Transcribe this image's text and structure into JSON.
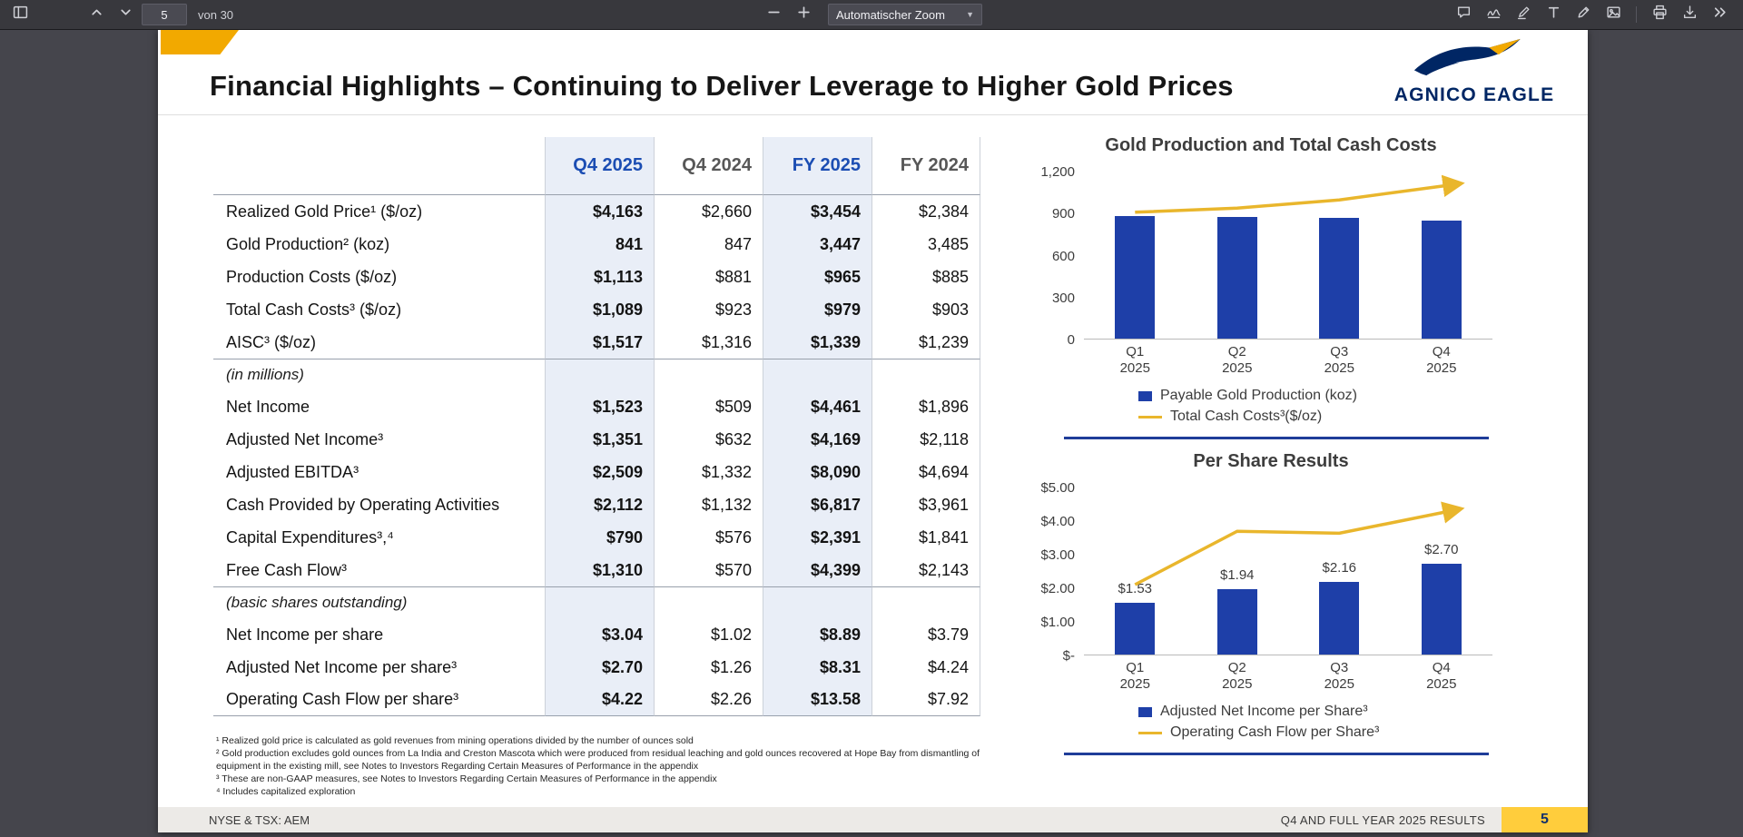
{
  "toolbar": {
    "page_input": "5",
    "pages_label": "von 30",
    "zoom_label": "Automatischer Zoom",
    "left_icons": [
      "sidebar-toggle-icon",
      "page-up-icon",
      "page-down-icon"
    ],
    "center_icons": [
      "zoom-out-icon",
      "zoom-in-icon",
      "zoom-select-chevron-icon"
    ],
    "right_icons": [
      "comment-icon",
      "signature-icon",
      "highlighter-icon",
      "text-tool-icon",
      "draw-icon",
      "image-icon",
      "print-icon",
      "save-icon",
      "more-tools-icon"
    ]
  },
  "slide": {
    "title": "Financial Highlights – Continuing to Deliver Leverage to Higher Gold Prices",
    "logo": "AGNICO EAGLE",
    "table": {
      "columns": [
        "Q4 2025",
        "Q4 2024",
        "FY 2025",
        "FY 2024"
      ],
      "rows": [
        {
          "type": "data",
          "label": "Realized Gold Price¹ ($/oz)",
          "values": [
            "$4,163",
            "$2,660",
            "$3,454",
            "$2,384"
          ]
        },
        {
          "type": "data",
          "label": "Gold Production² (koz)",
          "values": [
            "841",
            "847",
            "3,447",
            "3,485"
          ]
        },
        {
          "type": "data",
          "label": "Production Costs ($/oz)",
          "values": [
            "$1,113",
            "$881",
            "$965",
            "$885"
          ]
        },
        {
          "type": "data",
          "label": "Total Cash Costs³ ($/oz)",
          "values": [
            "$1,089",
            "$923",
            "$979",
            "$903"
          ]
        },
        {
          "type": "data",
          "label": "AISC³ ($/oz)",
          "values": [
            "$1,517",
            "$1,316",
            "$1,339",
            "$1,239"
          ]
        },
        {
          "type": "section",
          "label": "(in millions)"
        },
        {
          "type": "data",
          "label": "Net Income",
          "values": [
            "$1,523",
            "$509",
            "$4,461",
            "$1,896"
          ]
        },
        {
          "type": "data",
          "label": "Adjusted Net Income³",
          "values": [
            "$1,351",
            "$632",
            "$4,169",
            "$2,118"
          ]
        },
        {
          "type": "data",
          "label": "Adjusted EBITDA³",
          "values": [
            "$2,509",
            "$1,332",
            "$8,090",
            "$4,694"
          ]
        },
        {
          "type": "data",
          "label": "Cash Provided by Operating Activities",
          "values": [
            "$2,112",
            "$1,132",
            "$6,817",
            "$3,961"
          ]
        },
        {
          "type": "data",
          "label": "Capital Expenditures³,⁴",
          "values": [
            "$790",
            "$576",
            "$2,391",
            "$1,841"
          ]
        },
        {
          "type": "data",
          "label": "Free Cash Flow³",
          "values": [
            "$1,310",
            "$570",
            "$4,399",
            "$2,143"
          ]
        },
        {
          "type": "section",
          "label": "(basic shares outstanding)"
        },
        {
          "type": "data",
          "label": "Net Income per share",
          "values": [
            "$3.04",
            "$1.02",
            "$8.89",
            "$3.79"
          ]
        },
        {
          "type": "data",
          "label": "Adjusted Net Income per share³",
          "values": [
            "$2.70",
            "$1.26",
            "$8.31",
            "$4.24"
          ]
        },
        {
          "type": "data",
          "label": "Operating Cash Flow per share³",
          "values": [
            "$4.22",
            "$2.26",
            "$13.58",
            "$7.92"
          ]
        }
      ]
    },
    "footnotes": [
      "¹ Realized gold price is calculated as gold revenues from mining operations divided by the number of ounces sold",
      "² Gold production excludes gold ounces from La India and Creston Mascota which were produced from residual leaching and gold ounces recovered at Hope Bay from dismantling of equipment in the existing mill, see Notes to Investors Regarding Certain Measures of Performance in the appendix",
      "³ These are non-GAAP measures, see Notes to Investors Regarding Certain Measures of Performance in the appendix",
      "⁴ Includes capitalized exploration"
    ],
    "footer": {
      "ticker": "NYSE & TSX: AEM",
      "results": "Q4 AND FULL YEAR 2025 RESULTS",
      "page": "5"
    }
  },
  "colors": {
    "brand_navy": "#002664",
    "bar_blue": "#1e3fa8",
    "header_blue": "#1b4db3",
    "gold_accent": "#F2A900",
    "gold_line": "#E9B62C",
    "footer_gold": "#FFCD3C",
    "column_highlight": "#e9eef7",
    "legend_rule": "#1f3d99"
  },
  "chart_data": [
    {
      "type": "bar+line",
      "title": "Gold Production and Total Cash Costs",
      "categories": [
        "Q1 2025",
        "Q2 2025",
        "Q3 2025",
        "Q4 2025"
      ],
      "ymax": 1200,
      "ytick_labels": [
        "1,200",
        "900",
        "600",
        "300",
        "0"
      ],
      "grid": false,
      "legend_position": "bottom",
      "series": [
        {
          "name": "Payable Gold Production (koz)",
          "type": "bar",
          "color": "#1e3fa8",
          "values": [
            874,
            869,
            863,
            841
          ]
        },
        {
          "name": "Total Cash Costs³($/oz)",
          "type": "line",
          "color": "#E9B62C",
          "values": [
            903,
            933,
            991,
            1089
          ]
        }
      ]
    },
    {
      "type": "bar+line",
      "title": "Per Share Results",
      "categories": [
        "Q1 2025",
        "Q2 2025",
        "Q3 2025",
        "Q4 2025"
      ],
      "ymax": 5,
      "ytick_labels": [
        "$5.00",
        "$4.00",
        "$3.00",
        "$2.00",
        "$1.00",
        "$-"
      ],
      "grid": false,
      "legend_position": "bottom",
      "series": [
        {
          "name": "Adjusted Net Income per Share³",
          "type": "bar",
          "color": "#1e3fa8",
          "values": [
            1.53,
            1.94,
            2.16,
            2.7
          ],
          "labels": [
            "$1.53",
            "$1.94",
            "$2.16",
            "$2.70"
          ]
        },
        {
          "name": "Operating Cash Flow per Share³",
          "type": "line",
          "color": "#E9B62C",
          "values": [
            2.08,
            3.67,
            3.61,
            4.22
          ]
        }
      ]
    }
  ]
}
